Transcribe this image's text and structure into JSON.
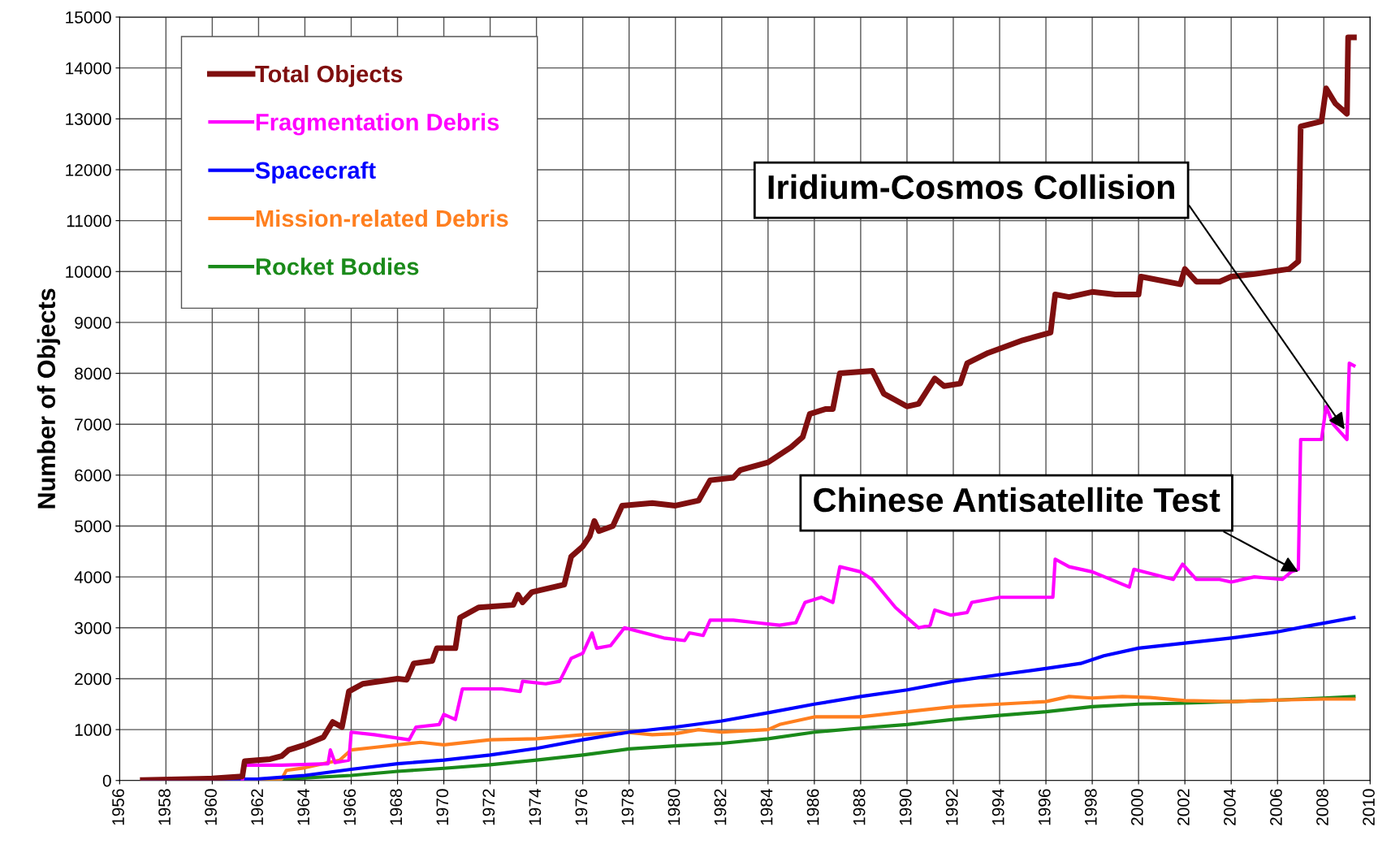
{
  "chart_data": {
    "type": "line",
    "ylabel": "Number of Objects",
    "xlim": [
      1956,
      2010
    ],
    "xticks": [
      1956,
      1958,
      1960,
      1962,
      1964,
      1966,
      1968,
      1970,
      1972,
      1974,
      1976,
      1978,
      1980,
      1982,
      1984,
      1986,
      1988,
      1990,
      1992,
      1994,
      1996,
      1998,
      2000,
      2002,
      2004,
      2006,
      2008,
      2010
    ],
    "ylim": [
      0,
      15000
    ],
    "yticks": [
      0,
      1000,
      2000,
      3000,
      4000,
      5000,
      6000,
      7000,
      8000,
      9000,
      10000,
      11000,
      12000,
      13000,
      14000,
      15000
    ],
    "grid": true,
    "legend": "top left",
    "line_style": "solid",
    "marker": "none",
    "series": [
      {
        "name": "Total Objects",
        "color": "#7f0f0f",
        "x": [
          1957,
          1960,
          1961.3,
          1961.4,
          1962.5,
          1963,
          1963.3,
          1964,
          1964.8,
          1965.2,
          1965.6,
          1965.9,
          1966.5,
          1968,
          1968.4,
          1968.7,
          1969.5,
          1969.7,
          1970.5,
          1970.7,
          1971.5,
          1973,
          1973.2,
          1973.4,
          1973.8,
          1975.2,
          1975.5,
          1976,
          1976.3,
          1976.5,
          1976.7,
          1977.3,
          1977.7,
          1979,
          1980,
          1981,
          1981.5,
          1982.5,
          1982.8,
          1984,
          1985,
          1985.5,
          1985.8,
          1986.5,
          1986.8,
          1987.1,
          1988.5,
          1989,
          1990,
          1990.5,
          1991.2,
          1991.6,
          1992.3,
          1992.6,
          1993.5,
          1995,
          1996.2,
          1996.4,
          1997,
          1998,
          1999,
          2000,
          2000.1,
          2001.8,
          2002,
          2002.5,
          2003.5,
          2004,
          2005,
          2006.5,
          2006.9,
          2007,
          2007.9,
          2008.1,
          2008.5,
          2009,
          2009.05,
          2009.3
        ],
        "values": [
          10,
          40,
          80,
          380,
          420,
          480,
          600,
          700,
          850,
          1150,
          1050,
          1750,
          1900,
          2000,
          1980,
          2300,
          2350,
          2600,
          2600,
          3200,
          3400,
          3450,
          3650,
          3500,
          3700,
          3850,
          4400,
          4600,
          4800,
          5100,
          4900,
          5000,
          5400,
          5450,
          5400,
          5500,
          5900,
          5950,
          6100,
          6250,
          6550,
          6750,
          7200,
          7300,
          7300,
          8000,
          8050,
          7600,
          7350,
          7400,
          7900,
          7750,
          7800,
          8200,
          8400,
          8650,
          8800,
          9550,
          9500,
          9600,
          9550,
          9550,
          9900,
          9750,
          10050,
          9800,
          9800,
          9900,
          9950,
          10050,
          10200,
          12850,
          12950,
          13600,
          13300,
          13100,
          14600,
          14600
        ]
      },
      {
        "name": "Fragmentation Debris",
        "color": "#ff00ff",
        "x": [
          1961.3,
          1961.4,
          1963,
          1965,
          1965.1,
          1965.3,
          1965.9,
          1966,
          1967,
          1968.5,
          1968.8,
          1969.8,
          1970,
          1970.5,
          1970.8,
          1972.5,
          1973.3,
          1973.4,
          1974.4,
          1975,
          1975.5,
          1976,
          1976.4,
          1976.6,
          1977.2,
          1977.8,
          1979.5,
          1980.4,
          1980.6,
          1981.2,
          1981.5,
          1982.5,
          1983.5,
          1984.5,
          1985.2,
          1985.6,
          1986.3,
          1986.8,
          1987.1,
          1988,
          1988.5,
          1989.5,
          1990.5,
          1991,
          1991.2,
          1991.9,
          1992.6,
          1992.8,
          1994,
          1995.5,
          1996.3,
          1996.4,
          1997,
          1998,
          1999.6,
          1999.8,
          2001.5,
          2001.9,
          2002.5,
          2003.5,
          2004,
          2005,
          2006.2,
          2006.6,
          2006.9,
          2007,
          2007.9,
          2008.1,
          2008.4,
          2009,
          2009.1,
          2009.3
        ],
        "values": [
          0,
          300,
          300,
          330,
          600,
          350,
          400,
          950,
          900,
          800,
          1050,
          1100,
          1300,
          1200,
          1800,
          1800,
          1750,
          1950,
          1900,
          1950,
          2400,
          2500,
          2900,
          2600,
          2650,
          3000,
          2800,
          2750,
          2900,
          2850,
          3150,
          3150,
          3100,
          3050,
          3100,
          3500,
          3600,
          3500,
          4200,
          4100,
          3950,
          3400,
          3000,
          3050,
          3350,
          3250,
          3300,
          3500,
          3600,
          3600,
          3600,
          4350,
          4200,
          4100,
          3800,
          4150,
          3950,
          4250,
          3950,
          3950,
          3900,
          4000,
          3950,
          4100,
          4150,
          6700,
          6700,
          7350,
          7000,
          6700,
          8200,
          8150
        ]
      },
      {
        "name": "Spacecraft",
        "color": "#0000ff",
        "x": [
          1957,
          1962,
          1964,
          1966,
          1968,
          1970,
          1972,
          1974,
          1976,
          1978,
          1980,
          1982,
          1984,
          1986,
          1988,
          1990,
          1992,
          1994,
          1996,
          1997.5,
          1998.5,
          2000,
          2002,
          2004,
          2006,
          2007.5,
          2009.3
        ],
        "values": [
          0,
          30,
          100,
          220,
          330,
          400,
          500,
          630,
          800,
          950,
          1050,
          1170,
          1330,
          1500,
          1650,
          1780,
          1950,
          2080,
          2200,
          2300,
          2450,
          2600,
          2700,
          2800,
          2920,
          3050,
          3200
        ]
      },
      {
        "name": "Mission-related Debris",
        "color": "#ff7f1f",
        "x": [
          1957,
          1963,
          1963.2,
          1964,
          1965,
          1965.5,
          1966,
          1967,
          1968,
          1969,
          1970,
          1972,
          1974,
          1976,
          1977.8,
          1979,
          1980,
          1981,
          1982,
          1984,
          1984.5,
          1986,
          1988,
          1990,
          1992,
          1994,
          1996,
          1997,
          1998,
          1999.3,
          2000.5,
          2002,
          2004,
          2006,
          2008,
          2009.3
        ],
        "values": [
          0,
          30,
          200,
          250,
          350,
          400,
          600,
          650,
          700,
          750,
          700,
          800,
          820,
          900,
          950,
          900,
          920,
          1000,
          950,
          1000,
          1100,
          1250,
          1250,
          1350,
          1450,
          1500,
          1550,
          1650,
          1620,
          1650,
          1630,
          1570,
          1550,
          1580,
          1600,
          1600
        ]
      },
      {
        "name": "Rocket Bodies",
        "color": "#1a8a1a",
        "x": [
          1957,
          1962,
          1964,
          1966,
          1968,
          1970,
          1972,
          1974,
          1976,
          1978,
          1980,
          1982,
          1984,
          1986,
          1988,
          1990,
          1992,
          1994,
          1996,
          1998,
          2000,
          2002,
          2004,
          2006,
          2008,
          2009.3
        ],
        "values": [
          0,
          20,
          50,
          100,
          180,
          240,
          310,
          400,
          500,
          620,
          680,
          730,
          820,
          950,
          1030,
          1100,
          1200,
          1280,
          1350,
          1450,
          1500,
          1520,
          1550,
          1580,
          1620,
          1650
        ]
      }
    ],
    "annotations": [
      {
        "text": "Iridium-Cosmos Collision",
        "x": 2008.9,
        "y": 6900
      },
      {
        "text": "Chinese Antisatellite Test",
        "x": 2006.9,
        "y": 4100
      }
    ]
  }
}
